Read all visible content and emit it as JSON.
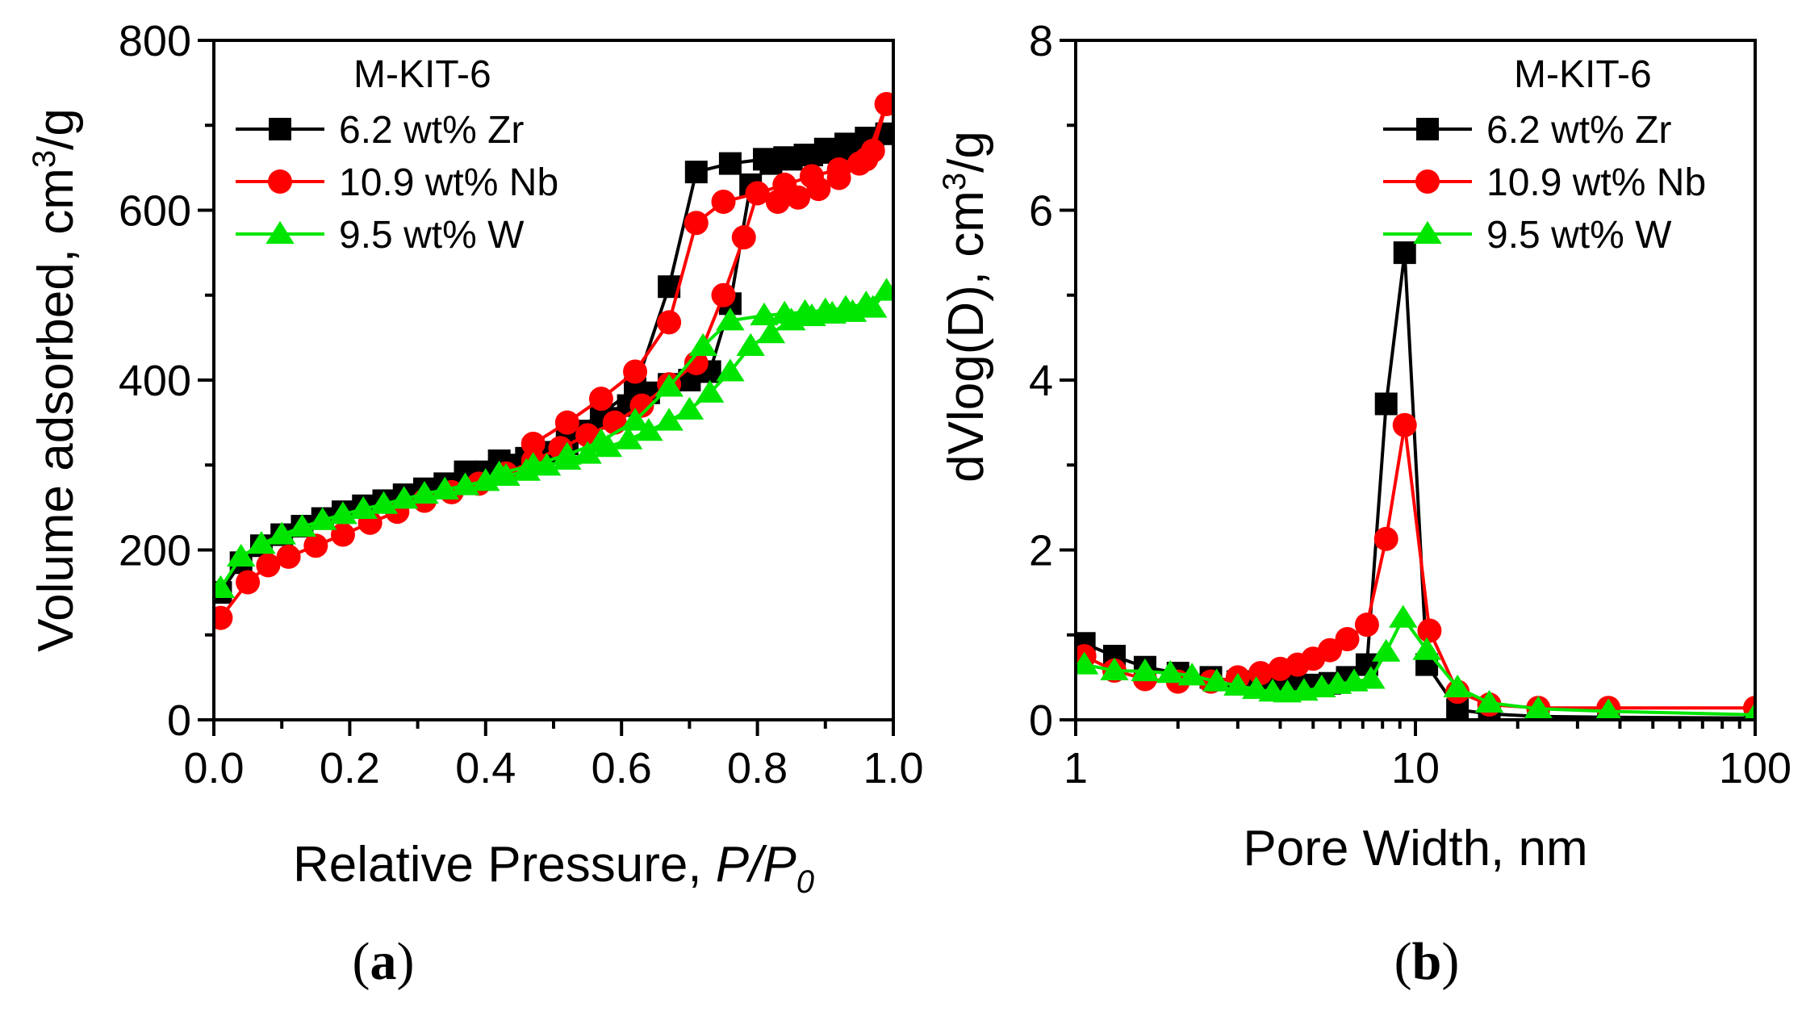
{
  "chart_data": [
    {
      "type": "line",
      "panel_label": "a",
      "xlabel_main": "Relative Pressure, ",
      "xlabel_italic": "P/P",
      "xlabel_sub": "0",
      "ylabel_main": "Volume adsorbed,  cm",
      "ylabel_sup": "3",
      "ylabel_tail": "/g",
      "xlim": [
        0.0,
        1.0
      ],
      "ylim": [
        0,
        800
      ],
      "xticks": [
        0.0,
        0.2,
        0.4,
        0.6,
        0.8,
        1.0
      ],
      "xtick_labels": [
        "0.0",
        "0.2",
        "0.4",
        "0.6",
        "0.8",
        "1.0"
      ],
      "yticks": [
        0,
        200,
        400,
        600,
        800
      ],
      "ytick_labels": [
        "0",
        "200",
        "400",
        "600",
        "800"
      ],
      "legend_title": "M-KIT-6",
      "series": [
        {
          "name": "6.2 wt% Zr",
          "color": "#000000",
          "marker": "square",
          "x": [
            0.01,
            0.04,
            0.07,
            0.1,
            0.13,
            0.16,
            0.19,
            0.22,
            0.25,
            0.28,
            0.31,
            0.34,
            0.37,
            0.4,
            0.43,
            0.46,
            0.49,
            0.52,
            0.55,
            0.58,
            0.61,
            0.64,
            0.67,
            0.7,
            0.73,
            0.76,
            0.79,
            0.82,
            0.85,
            0.88,
            0.91,
            0.94,
            0.97,
            0.99,
            0.96,
            0.93,
            0.9,
            0.87,
            0.84,
            0.81,
            0.76,
            0.71,
            0.67,
            0.62,
            0.57,
            0.52,
            0.47,
            0.42,
            0.37
          ],
          "y": [
            150,
            185,
            205,
            218,
            228,
            237,
            245,
            252,
            258,
            265,
            272,
            278,
            285,
            292,
            300,
            308,
            315,
            325,
            340,
            355,
            370,
            385,
            395,
            400,
            410,
            490,
            630,
            655,
            660,
            665,
            668,
            672,
            680,
            690,
            685,
            678,
            672,
            665,
            662,
            660,
            655,
            645,
            510,
            390,
            360,
            335,
            318,
            305,
            292
          ]
        },
        {
          "name": "10.9 wt% Nb",
          "color": "#ff0000",
          "marker": "circle",
          "x": [
            0.01,
            0.05,
            0.08,
            0.11,
            0.15,
            0.19,
            0.23,
            0.27,
            0.31,
            0.35,
            0.39,
            0.43,
            0.47,
            0.51,
            0.55,
            0.59,
            0.63,
            0.67,
            0.71,
            0.75,
            0.78,
            0.8,
            0.83,
            0.86,
            0.89,
            0.92,
            0.95,
            0.97,
            0.99,
            0.96,
            0.92,
            0.88,
            0.84,
            0.8,
            0.75,
            0.71,
            0.67,
            0.62,
            0.57,
            0.52,
            0.47
          ],
          "y": [
            120,
            162,
            182,
            192,
            205,
            218,
            232,
            245,
            258,
            268,
            278,
            290,
            305,
            320,
            335,
            350,
            370,
            395,
            420,
            500,
            568,
            620,
            610,
            615,
            625,
            638,
            655,
            670,
            725,
            660,
            648,
            640,
            630,
            620,
            610,
            585,
            468,
            410,
            378,
            350,
            325
          ]
        },
        {
          "name": "9.5 wt% W",
          "color": "#00e600",
          "marker": "triangle",
          "x": [
            0.01,
            0.04,
            0.07,
            0.1,
            0.13,
            0.16,
            0.19,
            0.22,
            0.25,
            0.28,
            0.31,
            0.34,
            0.37,
            0.4,
            0.43,
            0.46,
            0.49,
            0.52,
            0.55,
            0.58,
            0.61,
            0.64,
            0.67,
            0.7,
            0.73,
            0.76,
            0.79,
            0.82,
            0.85,
            0.88,
            0.91,
            0.94,
            0.97,
            0.99,
            0.96,
            0.93,
            0.9,
            0.87,
            0.84,
            0.81,
            0.76,
            0.72,
            0.67,
            0.62,
            0.57,
            0.52,
            0.47,
            0.42
          ],
          "y": [
            155,
            192,
            207,
            218,
            227,
            235,
            242,
            248,
            254,
            260,
            266,
            271,
            276,
            281,
            287,
            293,
            299,
            306,
            313,
            321,
            330,
            340,
            352,
            365,
            385,
            410,
            440,
            455,
            470,
            475,
            478,
            480,
            485,
            505,
            490,
            485,
            482,
            480,
            478,
            476,
            470,
            440,
            392,
            352,
            328,
            312,
            300,
            290
          ]
        }
      ]
    },
    {
      "type": "line",
      "panel_label": "b",
      "xlabel": "Pore Width, nm",
      "ylabel_main": "dVlog(D),  cm",
      "ylabel_sup": "3",
      "ylabel_tail": "/g",
      "xscale": "log",
      "xlim": [
        1,
        100
      ],
      "ylim": [
        0,
        8
      ],
      "xticks": [
        1,
        10,
        100
      ],
      "xtick_labels": [
        "1",
        "10",
        "100"
      ],
      "yticks": [
        0,
        2,
        4,
        6,
        8
      ],
      "ytick_labels": [
        "0",
        "2",
        "4",
        "6",
        "8"
      ],
      "legend_title": "M-KIT-6",
      "series": [
        {
          "name": "6.2 wt% Zr",
          "color": "#000000",
          "marker": "square",
          "x": [
            1.06,
            1.3,
            1.6,
            2.0,
            2.5,
            3.0,
            3.5,
            4.0,
            4.5,
            5.0,
            5.6,
            6.3,
            7.2,
            8.2,
            9.3,
            10.8,
            13.3,
            16.5,
            23.0,
            37.0,
            100
          ],
          "y": [
            0.9,
            0.75,
            0.62,
            0.55,
            0.5,
            0.45,
            0.42,
            0.4,
            0.4,
            0.41,
            0.43,
            0.5,
            0.65,
            3.72,
            5.5,
            0.65,
            0.12,
            0.07,
            0.04,
            0.03,
            0.02
          ]
        },
        {
          "name": "10.9 wt% Nb",
          "color": "#ff0000",
          "marker": "circle",
          "x": [
            1.06,
            1.3,
            1.6,
            2.0,
            2.5,
            3.0,
            3.5,
            4.0,
            4.5,
            5.0,
            5.6,
            6.3,
            7.2,
            8.2,
            9.3,
            11.0,
            13.3,
            16.5,
            23.0,
            37.0,
            100
          ],
          "y": [
            0.75,
            0.58,
            0.48,
            0.45,
            0.45,
            0.5,
            0.55,
            0.6,
            0.65,
            0.72,
            0.82,
            0.95,
            1.12,
            2.13,
            3.47,
            1.05,
            0.33,
            0.18,
            0.14,
            0.14,
            0.14
          ]
        },
        {
          "name": "9.5 wt% W",
          "color": "#00e600",
          "marker": "triangle",
          "x": [
            1.06,
            1.3,
            1.6,
            1.9,
            2.2,
            2.6,
            3.0,
            3.4,
            3.8,
            4.2,
            4.7,
            5.3,
            5.9,
            6.6,
            7.4,
            8.2,
            9.2,
            10.8,
            13.3,
            16.5,
            23.0,
            37.0,
            100
          ],
          "y": [
            0.65,
            0.58,
            0.57,
            0.55,
            0.52,
            0.45,
            0.4,
            0.36,
            0.33,
            0.32,
            0.34,
            0.38,
            0.42,
            0.45,
            0.48,
            0.8,
            1.2,
            0.82,
            0.38,
            0.2,
            0.13,
            0.1,
            0.06
          ]
        }
      ]
    }
  ]
}
